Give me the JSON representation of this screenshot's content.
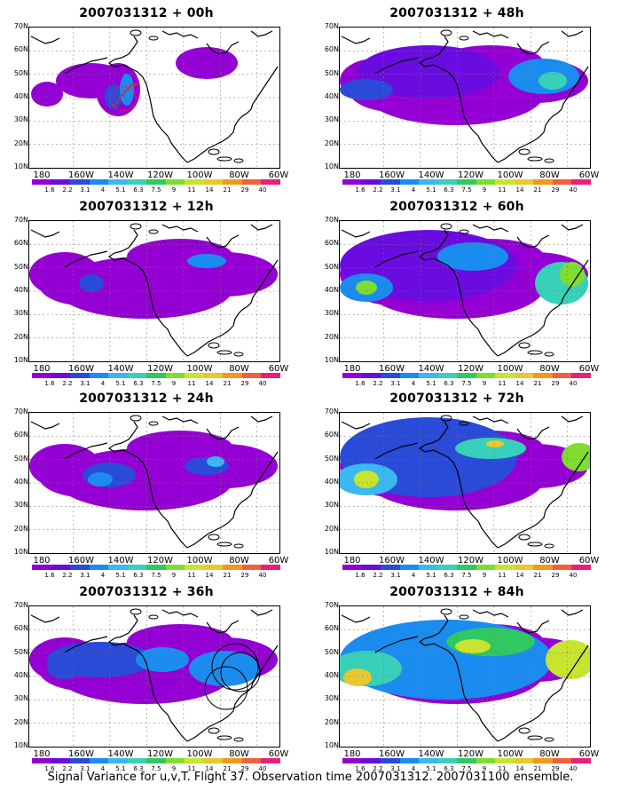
{
  "footer": "Signal Variance for u,v,T. Flight 37. Observation time 2007031312. 2007031100 ensemble.",
  "lat_labels": [
    "70N",
    "60N",
    "50N",
    "40N",
    "30N",
    "20N",
    "10N"
  ],
  "lon_labels": [
    "180",
    "160W",
    "140W",
    "120W",
    "100W",
    "80W",
    "60W"
  ],
  "colorbar": {
    "labels": [
      "1.6",
      "2.2",
      "3.1",
      "4",
      "5.1",
      "6.3",
      "7.5",
      "9",
      "11",
      "14",
      "21",
      "29",
      "40"
    ],
    "colors": [
      "#9400d3",
      "#6a0ce0",
      "#2a4ad8",
      "#1a8cf0",
      "#3ab8f0",
      "#38d0b8",
      "#30c860",
      "#80dc30",
      "#c8e430",
      "#e8c830",
      "#f09820",
      "#f06040",
      "#e8207a"
    ]
  },
  "panels": [
    {
      "title": "2007031312 + 00h",
      "level": 0,
      "marker": "dots"
    },
    {
      "title": "2007031312 + 12h",
      "level": 1
    },
    {
      "title": "2007031312 + 24h",
      "level": 2
    },
    {
      "title": "2007031312 + 36h",
      "level": 3,
      "marker": "circles"
    },
    {
      "title": "2007031312 + 48h",
      "level": 4
    },
    {
      "title": "2007031312 + 60h",
      "level": 5
    },
    {
      "title": "2007031312 + 72h",
      "level": 6
    },
    {
      "title": "2007031312 + 84h",
      "level": 7
    }
  ]
}
